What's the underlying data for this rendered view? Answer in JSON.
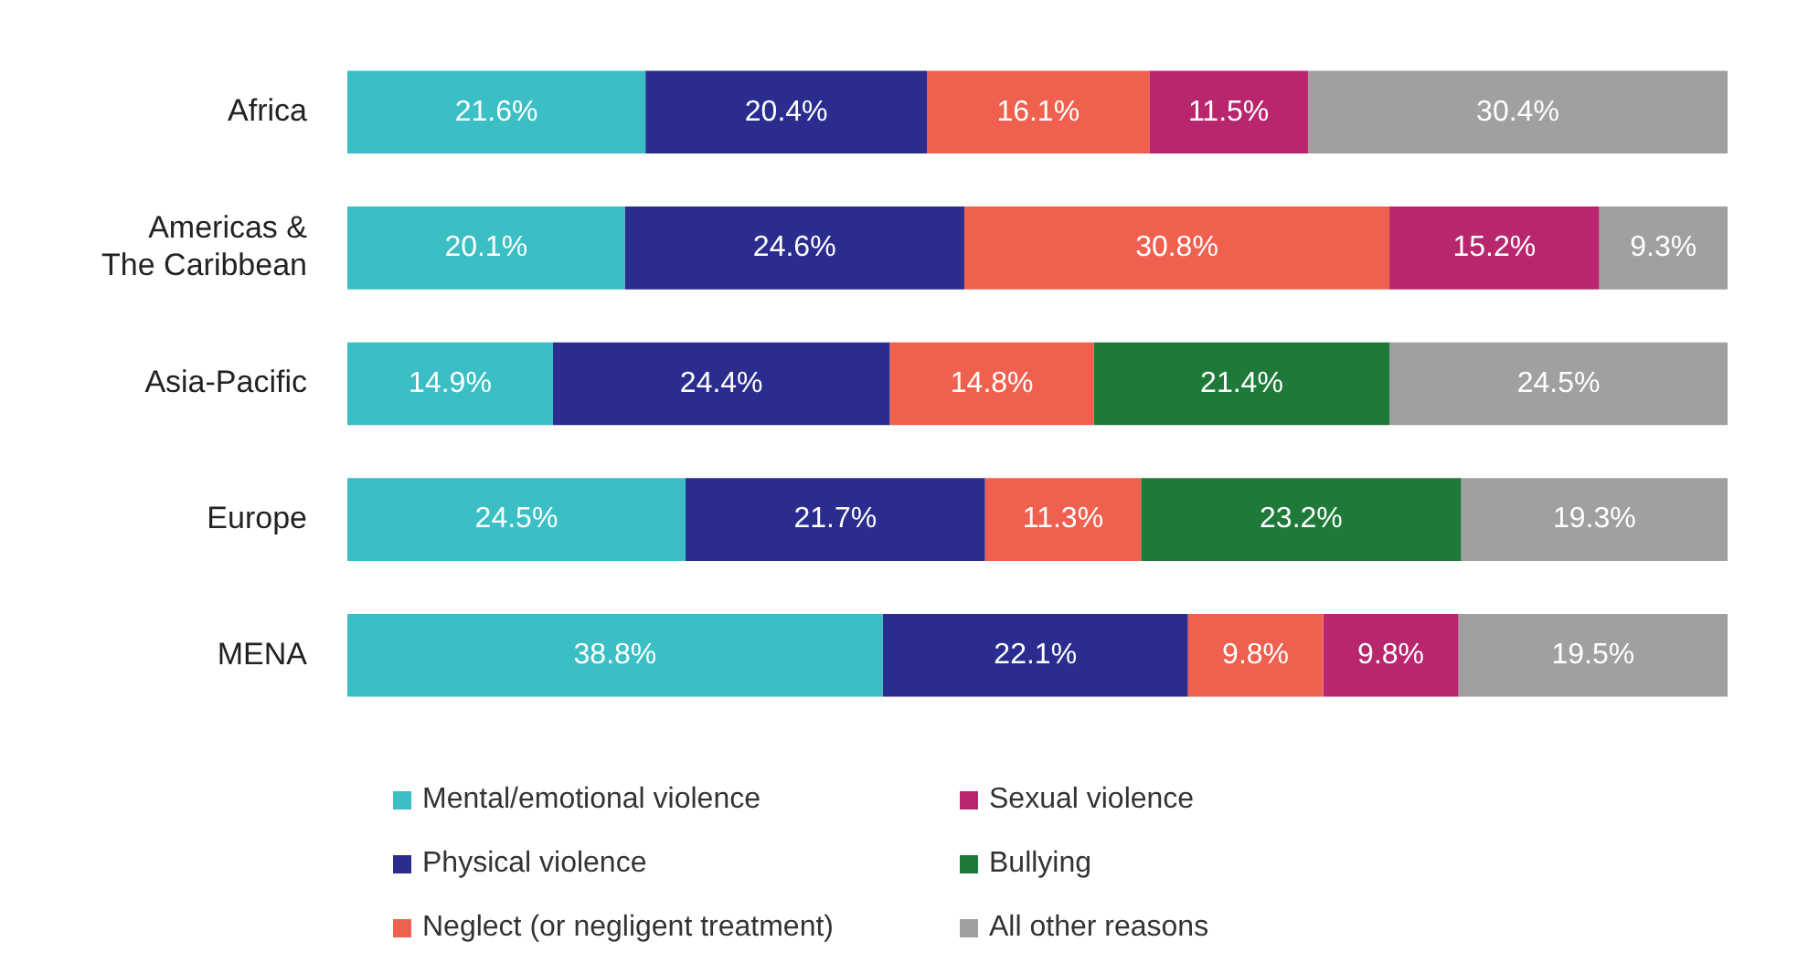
{
  "chart_data": {
    "type": "bar",
    "orientation": "horizontal",
    "stacked": true,
    "legend": "bottom",
    "categories": [
      "Africa",
      "Americas & The Caribbean",
      "Asia-Pacific",
      "Europe",
      "MENA"
    ],
    "series": [
      {
        "name": "Mental/emotional violence",
        "color": "#3bbfc4",
        "values": [
          21.6,
          20.1,
          14.9,
          24.5,
          38.8
        ],
        "value_labels": [
          "21.6%",
          "20.1%",
          "14.9%",
          "24.5%",
          "38.8%"
        ]
      },
      {
        "name": "Physical violence",
        "color": "#2b2d8e",
        "values": [
          20.4,
          24.6,
          24.4,
          21.7,
          22.1
        ],
        "value_labels": [
          "20.4%",
          "24.6%",
          "24.4%",
          "21.7%",
          "22.1%"
        ]
      },
      {
        "name": "Neglect (or negligent treatment)",
        "color": "#f0604f",
        "values": [
          16.1,
          30.8,
          14.8,
          11.3,
          9.8
        ],
        "value_labels": [
          "16.1%",
          "30.8%",
          "14.8%",
          "11.3%",
          "9.8%"
        ]
      },
      {
        "name": "Sexual violence",
        "color": "#b8266e",
        "values": [
          11.5,
          15.2,
          null,
          null,
          9.8
        ],
        "value_labels": [
          "11.5%",
          "15.2%",
          null,
          null,
          "9.8%"
        ]
      },
      {
        "name": "Bullying",
        "color": "#1f7a3a",
        "values": [
          null,
          null,
          21.4,
          23.2,
          null
        ],
        "value_labels": [
          null,
          null,
          "21.4%",
          "23.2%",
          null
        ]
      },
      {
        "name": "All other reasons",
        "color": "#a0a0a0",
        "values": [
          30.4,
          9.3,
          24.5,
          19.3,
          19.5
        ],
        "value_labels": [
          "30.4%",
          "9.3%",
          "24.5%",
          "19.3%",
          "19.5%"
        ]
      }
    ]
  }
}
